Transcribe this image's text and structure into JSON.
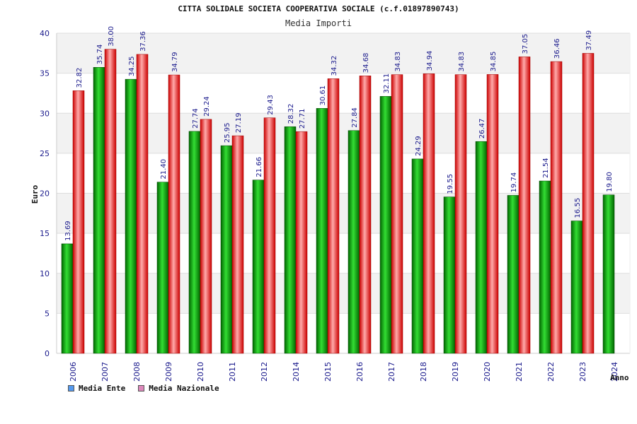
{
  "chart_data": {
    "type": "bar",
    "title": "CITTA SOLIDALE SOCIETA COOPERATIVA SOCIALE (c.f.01897890743)",
    "subtitle": "Media Importi",
    "xlabel": "Anno",
    "ylabel": "Euro",
    "ylim": [
      0,
      40
    ],
    "yticks": [
      "0",
      "5",
      "10",
      "15",
      "20",
      "25",
      "30",
      "35",
      "40"
    ],
    "categories": [
      "2006",
      "2007",
      "2008",
      "2009",
      "2010",
      "2011",
      "2012",
      "2014",
      "2015",
      "2016",
      "2017",
      "2018",
      "2019",
      "2020",
      "2021",
      "2022",
      "2023",
      "2024"
    ],
    "series": [
      {
        "name": "Media Ente",
        "color": "#00aa00",
        "legend_color": "#5599ee",
        "values": [
          13.69,
          35.74,
          34.25,
          21.4,
          27.74,
          25.95,
          21.66,
          28.32,
          30.61,
          27.84,
          32.11,
          24.29,
          19.55,
          26.47,
          19.74,
          21.54,
          16.55,
          19.8
        ],
        "labels": [
          "13.69",
          "35.74",
          "34.25",
          "21.40",
          "27.74",
          "25.95",
          "21.66",
          "28.32",
          "30.61",
          "27.84",
          "32.11",
          "24.29",
          "19.55",
          "26.47",
          "19.74",
          "21.54",
          "16.55",
          "19.80"
        ]
      },
      {
        "name": "Media Nazionale",
        "color": "#ee1111",
        "legend_color": "#dd88bb",
        "values": [
          32.82,
          38.0,
          37.36,
          34.79,
          29.24,
          27.19,
          29.43,
          27.71,
          34.32,
          34.68,
          34.83,
          34.94,
          34.83,
          34.85,
          37.05,
          36.46,
          37.49,
          null
        ],
        "labels": [
          "32.82",
          "38.00",
          "37.36",
          "34.79",
          "29.24",
          "27.19",
          "29.43",
          "27.71",
          "34.32",
          "34.68",
          "34.83",
          "34.94",
          "34.83",
          "34.85",
          "37.05",
          "36.46",
          "37.49",
          ""
        ]
      }
    ],
    "grid": true,
    "legend_position": "bottom-left"
  }
}
